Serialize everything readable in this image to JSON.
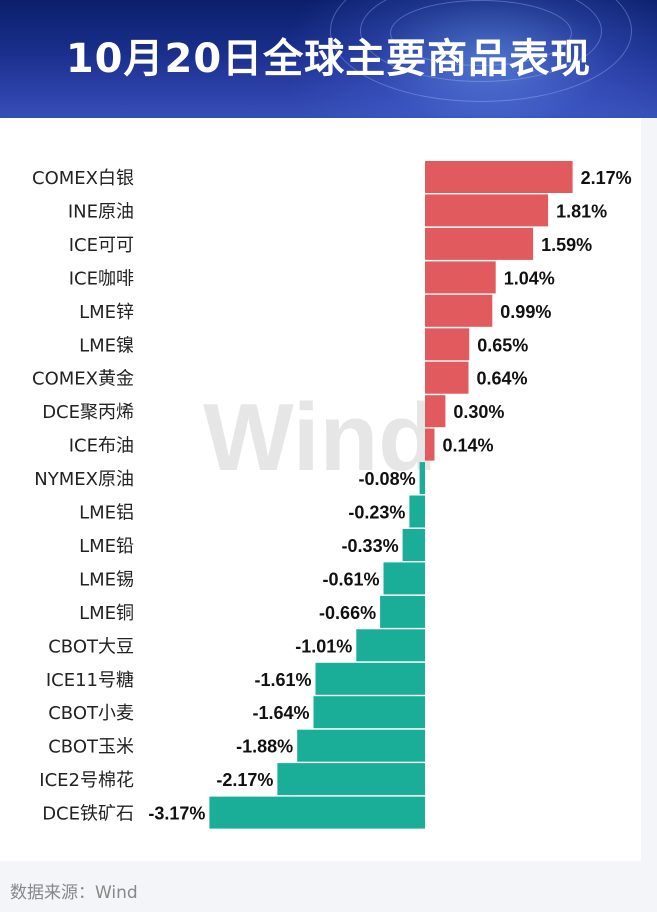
{
  "title": "10月20日全球主要商品表现",
  "source": "数据来源：Wind",
  "watermark": "Wind",
  "colors": {
    "positive": "#e15a5e",
    "negative": "#1aae99",
    "header_bg": "#1a2f8c"
  },
  "chart_data": {
    "type": "bar",
    "orientation": "horizontal",
    "unit": "%",
    "categories": [
      "COMEX白银",
      "INE原油",
      "ICE可可",
      "ICE咖啡",
      "LME锌",
      "LME镍",
      "COMEX黄金",
      "DCE聚丙烯",
      "ICE布油",
      "NYMEX原油",
      "LME铝",
      "LME铅",
      "LME锡",
      "LME铜",
      "CBOT大豆",
      "ICE11号糖",
      "CBOT小麦",
      "CBOT玉米",
      "ICE2号棉花",
      "DCE铁矿石"
    ],
    "values": [
      2.17,
      1.81,
      1.59,
      1.04,
      0.99,
      0.65,
      0.64,
      0.3,
      0.14,
      -0.08,
      -0.23,
      -0.33,
      -0.61,
      -0.66,
      -1.01,
      -1.61,
      -1.64,
      -1.88,
      -2.17,
      -3.17
    ],
    "labels": [
      "2.17%",
      "1.81%",
      "1.59%",
      "1.04%",
      "0.99%",
      "0.65%",
      "0.64%",
      "0.30%",
      "0.14%",
      "-0.08%",
      "-0.23%",
      "-0.33%",
      "-0.61%",
      "-0.66%",
      "-1.01%",
      "-1.61%",
      "-1.64%",
      "-1.88%",
      "-2.17%",
      "-3.17%"
    ],
    "xlim": [
      -3.17,
      2.17
    ],
    "grid": false,
    "legend": "none"
  }
}
